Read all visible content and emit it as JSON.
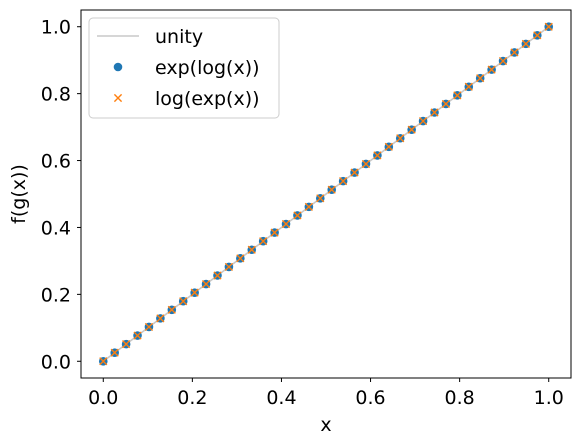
{
  "chart_data": {
    "type": "scatter",
    "xlabel": "x",
    "ylabel": "f(g(x))",
    "xlim": [
      -0.05,
      1.05
    ],
    "ylim": [
      -0.05,
      1.05
    ],
    "x_ticks": [
      0.0,
      0.2,
      0.4,
      0.6,
      0.8,
      1.0
    ],
    "x_tick_labels": [
      "0.0",
      "0.2",
      "0.4",
      "0.6",
      "0.8",
      "1.0"
    ],
    "y_ticks": [
      0.0,
      0.2,
      0.4,
      0.6,
      0.8,
      1.0
    ],
    "y_tick_labels": [
      "0.0",
      "0.2",
      "0.4",
      "0.6",
      "0.8",
      "1.0"
    ],
    "grid": false,
    "legend_position": "top-left",
    "colors": {
      "unity": "#c8c8c8",
      "exp_log": "#1f77b4",
      "log_exp": "#ff7f0e"
    },
    "series": [
      {
        "name": "unity",
        "kind": "line",
        "x": [
          0,
          1
        ],
        "y": [
          0,
          1
        ]
      },
      {
        "name": "exp(log(x))",
        "kind": "marker-circle",
        "x": [
          0.0,
          0.025641,
          0.051282,
          0.076923,
          0.102564,
          0.128205,
          0.153846,
          0.179487,
          0.205128,
          0.230769,
          0.25641,
          0.282051,
          0.307692,
          0.333333,
          0.358974,
          0.384615,
          0.410256,
          0.435897,
          0.461538,
          0.487179,
          0.512821,
          0.538462,
          0.564103,
          0.589744,
          0.615385,
          0.641026,
          0.666667,
          0.692308,
          0.717949,
          0.74359,
          0.769231,
          0.794872,
          0.820513,
          0.846154,
          0.871795,
          0.897436,
          0.923077,
          0.948718,
          0.974359,
          1.0
        ],
        "y": [
          0.0,
          0.025641,
          0.051282,
          0.076923,
          0.102564,
          0.128205,
          0.153846,
          0.179487,
          0.205128,
          0.230769,
          0.25641,
          0.282051,
          0.307692,
          0.333333,
          0.358974,
          0.384615,
          0.410256,
          0.435897,
          0.461538,
          0.487179,
          0.512821,
          0.538462,
          0.564103,
          0.589744,
          0.615385,
          0.641026,
          0.666667,
          0.692308,
          0.717949,
          0.74359,
          0.769231,
          0.794872,
          0.820513,
          0.846154,
          0.871795,
          0.897436,
          0.923077,
          0.948718,
          0.974359,
          1.0
        ]
      },
      {
        "name": "log(exp(x))",
        "kind": "marker-x",
        "x": [
          0.0,
          0.025641,
          0.051282,
          0.076923,
          0.102564,
          0.128205,
          0.153846,
          0.179487,
          0.205128,
          0.230769,
          0.25641,
          0.282051,
          0.307692,
          0.333333,
          0.358974,
          0.384615,
          0.410256,
          0.435897,
          0.461538,
          0.487179,
          0.512821,
          0.538462,
          0.564103,
          0.589744,
          0.615385,
          0.641026,
          0.666667,
          0.692308,
          0.717949,
          0.74359,
          0.769231,
          0.794872,
          0.820513,
          0.846154,
          0.871795,
          0.897436,
          0.923077,
          0.948718,
          0.974359,
          1.0
        ],
        "y": [
          0.0,
          0.025641,
          0.051282,
          0.076923,
          0.102564,
          0.128205,
          0.153846,
          0.179487,
          0.205128,
          0.230769,
          0.25641,
          0.282051,
          0.307692,
          0.333333,
          0.358974,
          0.384615,
          0.410256,
          0.435897,
          0.461538,
          0.487179,
          0.512821,
          0.538462,
          0.564103,
          0.589744,
          0.615385,
          0.641026,
          0.666667,
          0.692308,
          0.717949,
          0.74359,
          0.769231,
          0.794872,
          0.820513,
          0.846154,
          0.871795,
          0.897436,
          0.923077,
          0.948718,
          0.974359,
          1.0
        ]
      }
    ]
  }
}
